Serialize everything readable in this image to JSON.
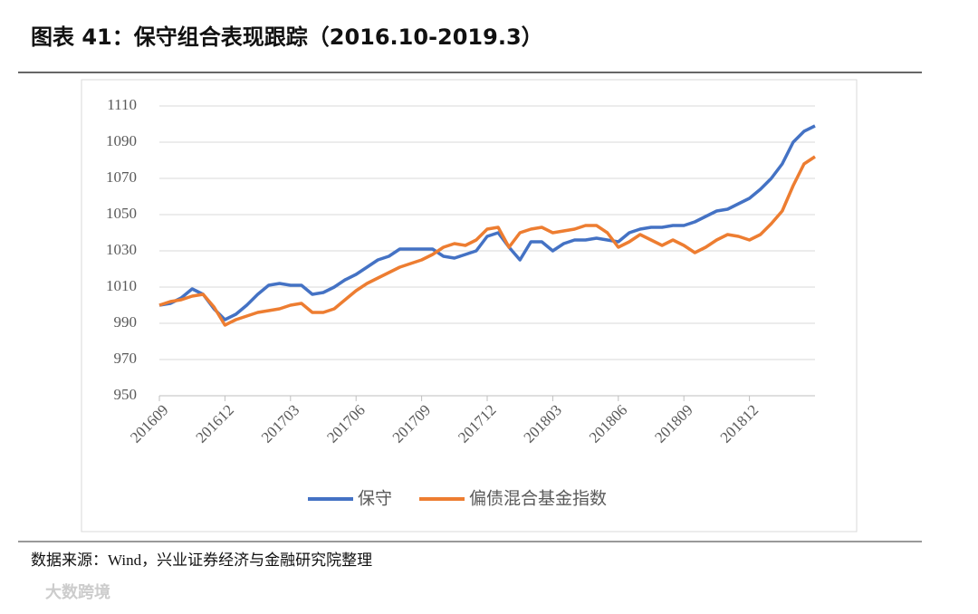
{
  "title": "图表 41：保守组合表现跟踪（2016.10-2019.3）",
  "source": "数据来源：Wind，兴业证券经济与金融研究院整理",
  "watermark": "大数跨境",
  "chart_data": {
    "type": "line",
    "categories": [
      "201609",
      null,
      null,
      null,
      null,
      null,
      "201612",
      null,
      null,
      null,
      null,
      null,
      "201703",
      null,
      null,
      null,
      null,
      null,
      "201706",
      null,
      null,
      null,
      null,
      null,
      "201709",
      null,
      null,
      null,
      null,
      null,
      "201712",
      null,
      null,
      null,
      null,
      null,
      "201803",
      null,
      null,
      null,
      null,
      null,
      "201806",
      null,
      null,
      null,
      null,
      null,
      "201809",
      null,
      null,
      null,
      null,
      null,
      "201812",
      null,
      null,
      null,
      null,
      null,
      null
    ],
    "series": [
      {
        "name": "保守",
        "color": "#4472c4",
        "values": [
          1000,
          1001,
          1004,
          1009,
          1006,
          998,
          992,
          995,
          1000,
          1006,
          1011,
          1012,
          1011,
          1011,
          1006,
          1007,
          1010,
          1014,
          1017,
          1021,
          1025,
          1027,
          1031,
          1031,
          1031,
          1031,
          1027,
          1026,
          1028,
          1030,
          1038,
          1040,
          1032,
          1025,
          1035,
          1035,
          1030,
          1034,
          1036,
          1036,
          1037,
          1036,
          1035,
          1040,
          1042,
          1043,
          1043,
          1044,
          1044,
          1046,
          1049,
          1052,
          1053,
          1056,
          1059,
          1064,
          1070,
          1078,
          1090,
          1096,
          1099
        ]
      },
      {
        "name": "偏债混合基金指数",
        "color": "#ed7d31",
        "values": [
          1000,
          1002,
          1003,
          1005,
          1006,
          999,
          989,
          992,
          994,
          996,
          997,
          998,
          1000,
          1001,
          996,
          996,
          998,
          1003,
          1008,
          1012,
          1015,
          1018,
          1021,
          1023,
          1025,
          1028,
          1032,
          1034,
          1033,
          1036,
          1042,
          1043,
          1032,
          1040,
          1042,
          1043,
          1040,
          1041,
          1042,
          1044,
          1044,
          1040,
          1032,
          1035,
          1039,
          1036,
          1033,
          1036,
          1033,
          1029,
          1032,
          1036,
          1039,
          1038,
          1036,
          1039,
          1045,
          1052,
          1066,
          1078,
          1082
        ]
      }
    ],
    "ylim": [
      950,
      1110
    ],
    "yticks": [
      950,
      970,
      990,
      1010,
      1030,
      1050,
      1070,
      1090,
      1110
    ],
    "grid": true
  }
}
